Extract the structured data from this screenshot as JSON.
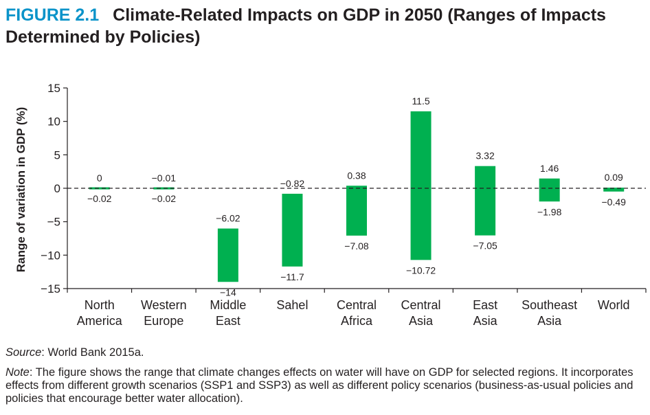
{
  "figure": {
    "number": "FIGURE 2.1",
    "title": "Climate-Related Impacts on GDP in 2050 (Ranges of Impacts Determined by Policies)"
  },
  "source": {
    "label": "Source",
    "text": ": World Bank 2015a."
  },
  "note": {
    "label": "Note",
    "text": ": The figure shows the range that climate changes effects on water will have on GDP for selected regions. It incorporates effects from different growth scenarios (SSP1 and SSP3) as well as different policy scenarios (business-as-usual policies and policies that encourage better water allocation)."
  },
  "colors": {
    "bar": "#00b050",
    "axis": "#231f20",
    "title_number": "#0a93c9"
  },
  "chart_data": {
    "type": "bar",
    "subtype": "floating-range",
    "ylabel": "Range of variation in GDP (%)",
    "xlabel": "",
    "ylim": [
      -15,
      15
    ],
    "yticks": [
      15,
      10,
      5,
      0,
      -5,
      -10,
      -15
    ],
    "ytick_labels": [
      "15",
      "10",
      "5",
      "0",
      "−5",
      "−10",
      "−15"
    ],
    "zero_line": "dashed",
    "grid": false,
    "categories": [
      [
        "North",
        "America"
      ],
      [
        "Western",
        "Europe"
      ],
      [
        "Middle",
        "East"
      ],
      [
        "Sahel"
      ],
      [
        "Central",
        "Africa"
      ],
      [
        "Central",
        "Asia"
      ],
      [
        "East",
        "Asia"
      ],
      [
        "Southeast",
        "Asia"
      ],
      [
        "World"
      ]
    ],
    "high": [
      0,
      -0.01,
      -6.02,
      -0.82,
      0.38,
      11.5,
      3.32,
      1.46,
      0.09
    ],
    "low": [
      -0.02,
      -0.02,
      -14,
      -11.7,
      -7.08,
      -10.72,
      -7.05,
      -1.98,
      -0.49
    ],
    "high_labels": [
      "0",
      "−0.01",
      "−6.02",
      "−0.82",
      "0.38",
      "11.5",
      "3.32",
      "1.46",
      "0.09"
    ],
    "low_labels": [
      "−0.02",
      "−0.02",
      "−14",
      "−11.7",
      "−7.08",
      "−10.72",
      "−7.05",
      "−1.98",
      "−0.49"
    ]
  }
}
